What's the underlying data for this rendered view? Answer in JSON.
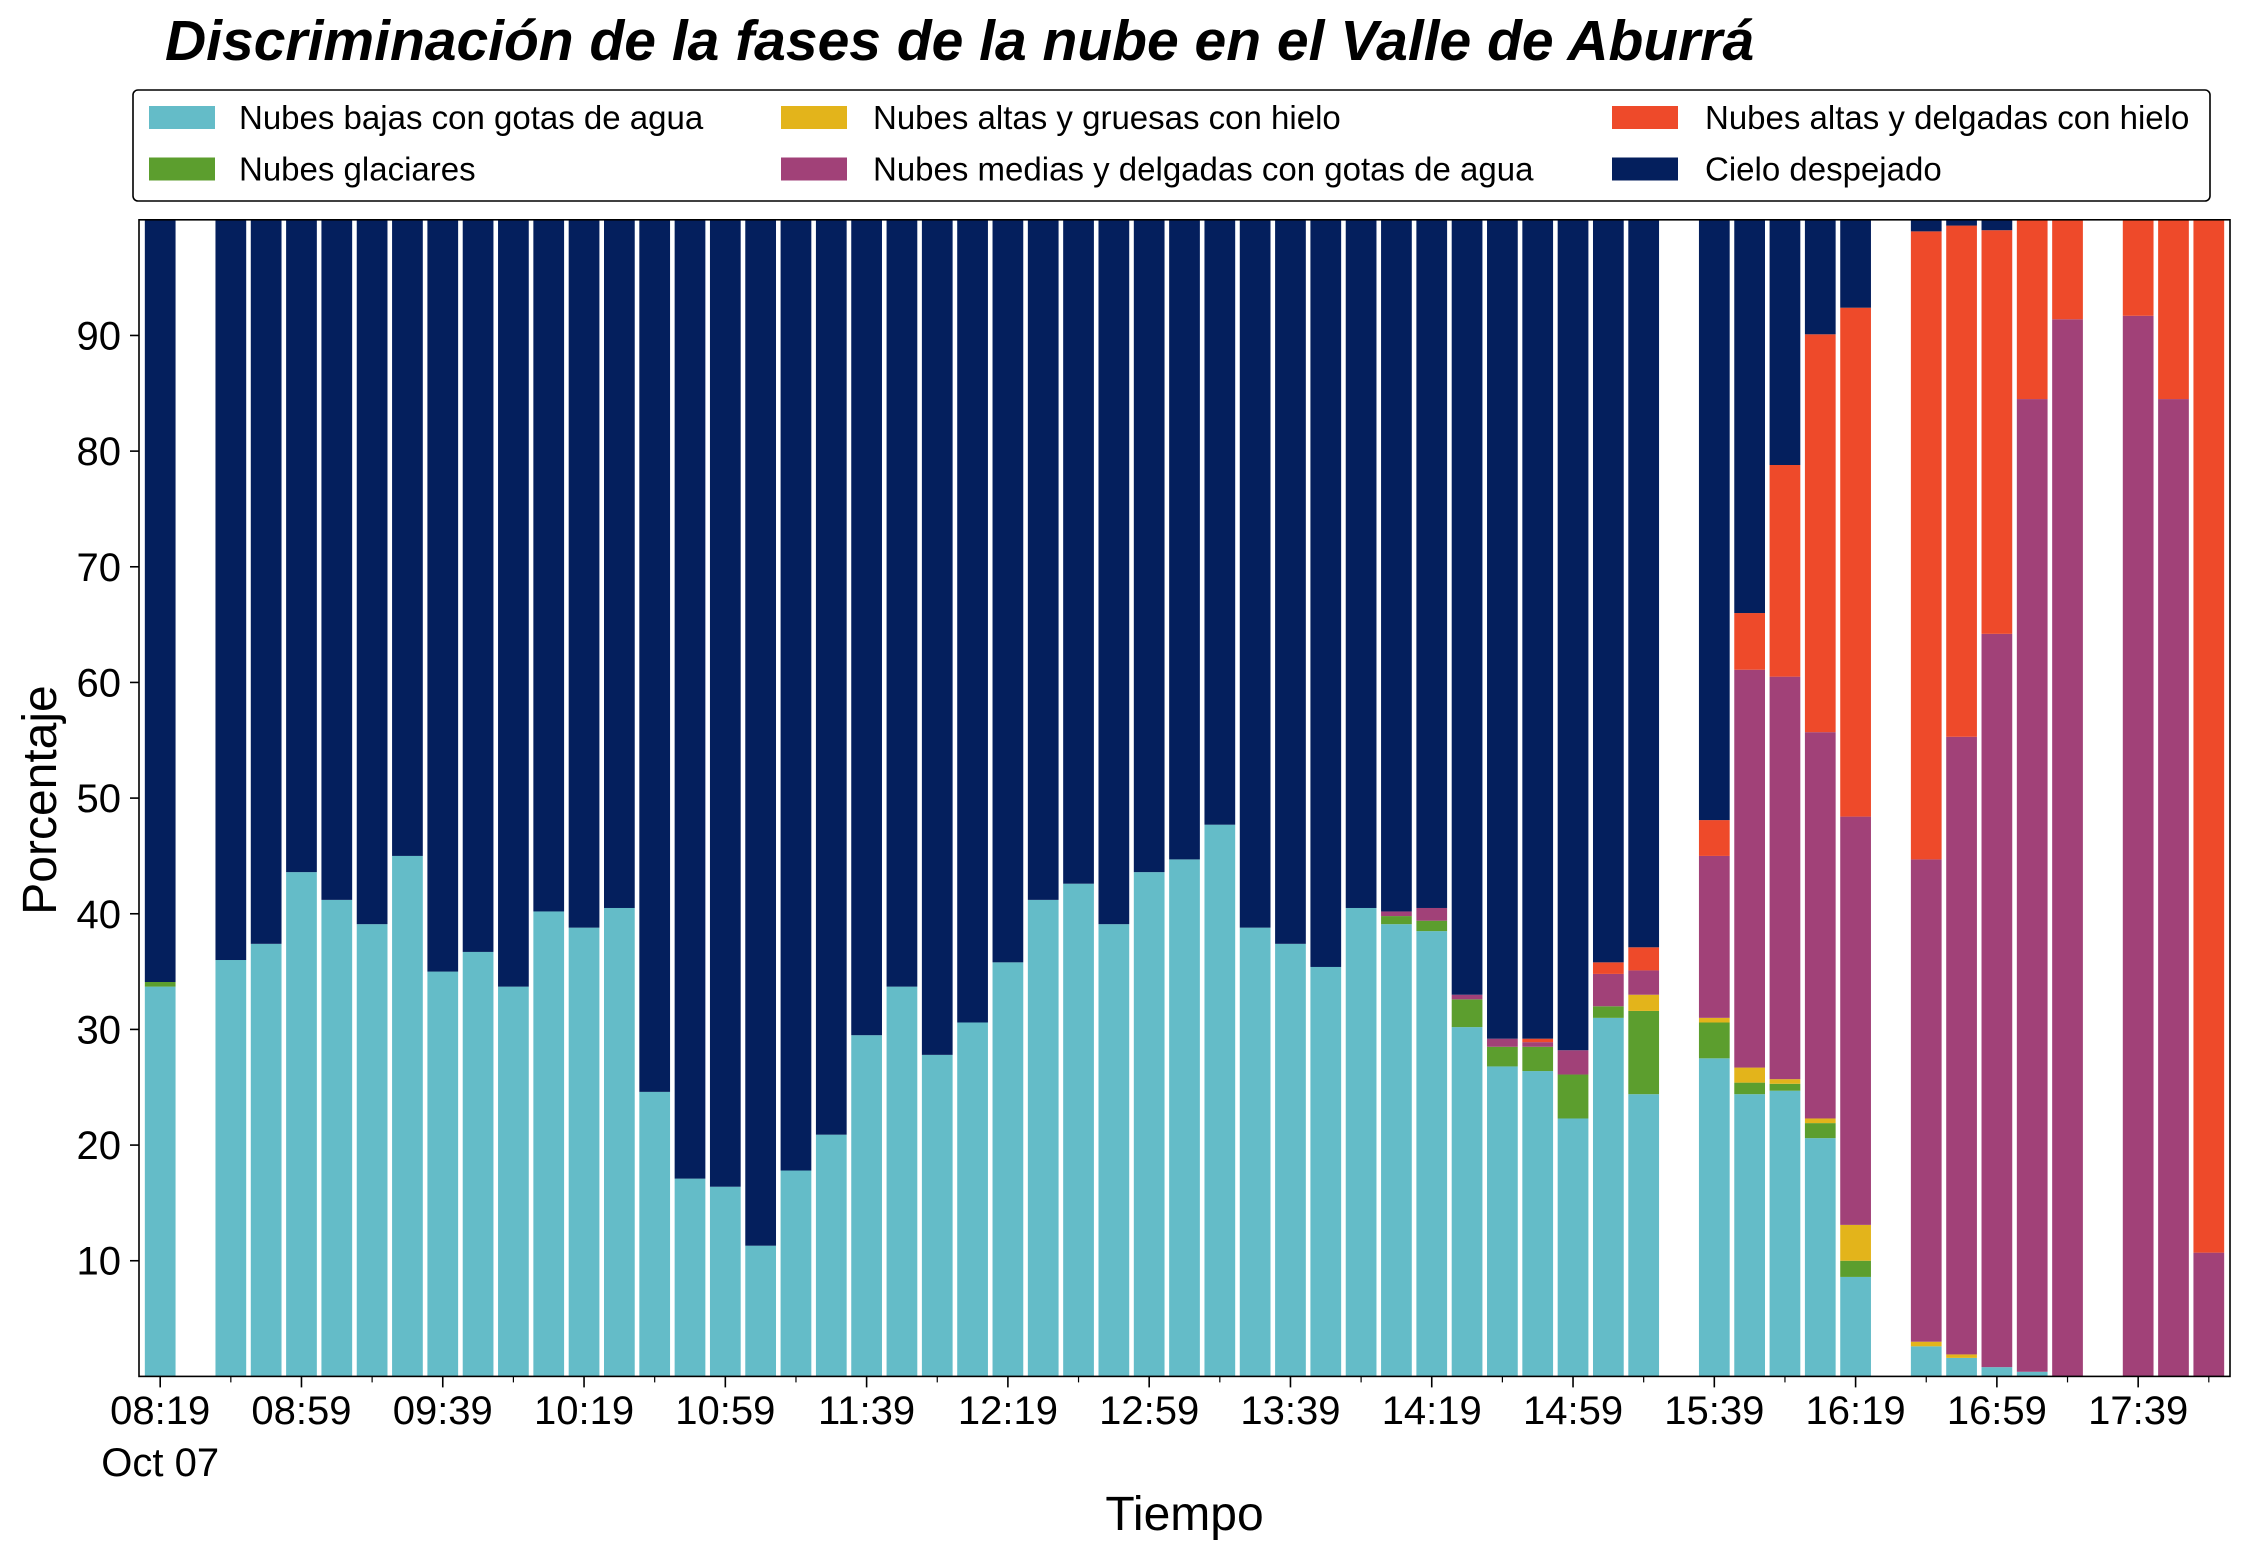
{
  "chart_data": {
    "type": "bar",
    "stacked": true,
    "title": "Discriminación de la fases de la nube en el Valle de Aburrá",
    "xlabel": "Tiempo",
    "ylabel": "Porcentaje",
    "ylim": [
      0,
      100
    ],
    "xlim": [
      "08:13",
      "18:05"
    ],
    "yticks": [
      10,
      20,
      30,
      40,
      50,
      60,
      70,
      80,
      90
    ],
    "xticks": [
      "08:19",
      "08:59",
      "09:39",
      "10:19",
      "10:59",
      "11:39",
      "12:19",
      "12:59",
      "13:39",
      "14:19",
      "14:59",
      "15:39",
      "16:19",
      "16:59",
      "17:39"
    ],
    "date_label": "Oct 07",
    "grid": false,
    "legend": "top",
    "x": [
      "08:19",
      "08:39",
      "08:49",
      "08:59",
      "09:09",
      "09:19",
      "09:29",
      "09:39",
      "09:49",
      "09:59",
      "10:09",
      "10:19",
      "10:29",
      "10:39",
      "10:49",
      "10:59",
      "11:09",
      "11:19",
      "11:29",
      "11:39",
      "11:49",
      "11:59",
      "12:09",
      "12:19",
      "12:29",
      "12:39",
      "12:49",
      "12:59",
      "13:09",
      "13:19",
      "13:29",
      "13:39",
      "13:49",
      "13:59",
      "14:09",
      "14:19",
      "14:29",
      "14:39",
      "14:49",
      "14:59",
      "15:09",
      "15:19",
      "15:39",
      "15:49",
      "15:59",
      "16:09",
      "16:19",
      "16:39",
      "16:49",
      "16:59",
      "17:09",
      "17:19",
      "17:39",
      "17:49",
      "17:59"
    ],
    "series": [
      {
        "name": "Nubes bajas con gotas de agua",
        "color": "#64BCC8",
        "values": [
          33.7,
          36.0,
          37.4,
          43.6,
          41.2,
          39.1,
          45.0,
          35.0,
          36.7,
          33.7,
          40.2,
          38.8,
          40.5,
          24.6,
          17.1,
          16.4,
          11.3,
          17.8,
          20.9,
          29.5,
          33.7,
          27.8,
          30.6,
          35.8,
          41.2,
          42.6,
          39.1,
          43.6,
          44.7,
          47.7,
          38.8,
          37.4,
          35.4,
          40.5,
          39.1,
          38.5,
          30.2,
          26.8,
          26.4,
          22.3,
          31.0,
          24.4,
          27.5,
          24.4,
          24.7,
          20.6,
          8.6,
          2.6,
          1.6,
          0.8,
          0.4,
          0,
          0,
          0,
          0
        ]
      },
      {
        "name": "Nubes glaciares",
        "color": "#5C9E2E",
        "values": [
          0.4,
          0,
          0,
          0,
          0,
          0,
          0,
          0,
          0,
          0,
          0,
          0,
          0,
          0,
          0,
          0,
          0,
          0,
          0,
          0,
          0,
          0,
          0,
          0,
          0,
          0,
          0,
          0,
          0,
          0,
          0,
          0,
          0,
          0,
          0.7,
          0.9,
          2.4,
          1.7,
          2.1,
          3.8,
          1.0,
          7.2,
          3.1,
          1.0,
          0.6,
          1.3,
          1.4,
          0,
          0,
          0,
          0,
          0,
          0,
          0,
          0
        ]
      },
      {
        "name": "Nubes altas y gruesas con hielo",
        "color": "#E3B41B",
        "values": [
          0,
          0,
          0,
          0,
          0,
          0,
          0,
          0,
          0,
          0,
          0,
          0,
          0,
          0,
          0,
          0,
          0,
          0,
          0,
          0,
          0,
          0,
          0,
          0,
          0,
          0,
          0,
          0,
          0,
          0,
          0,
          0,
          0,
          0,
          0,
          0,
          0,
          0,
          0,
          0,
          0,
          1.4,
          0.4,
          1.3,
          0.4,
          0.4,
          3.1,
          0.4,
          0.3,
          0,
          0,
          0,
          0,
          0,
          0
        ]
      },
      {
        "name": "Nubes medias y delgadas con gotas de agua",
        "color": "#A14178",
        "values": [
          0,
          0,
          0,
          0,
          0,
          0,
          0,
          0,
          0,
          0,
          0,
          0,
          0,
          0,
          0,
          0,
          0,
          0,
          0,
          0,
          0,
          0,
          0,
          0,
          0,
          0,
          0,
          0,
          0,
          0,
          0,
          0,
          0,
          0,
          0.4,
          1.1,
          0.4,
          0.7,
          0.4,
          2.1,
          2.8,
          2.1,
          14.0,
          34.4,
          34.8,
          33.4,
          35.3,
          41.7,
          53.4,
          63.4,
          84.1,
          91.4,
          91.7,
          84.5,
          10.7
        ]
      },
      {
        "name": "Nubes altas y delgadas con hielo",
        "color": "#EE4A2A",
        "values": [
          0,
          0,
          0,
          0,
          0,
          0,
          0,
          0,
          0,
          0,
          0,
          0,
          0,
          0,
          0,
          0,
          0,
          0,
          0,
          0,
          0,
          0,
          0,
          0,
          0,
          0,
          0,
          0,
          0,
          0,
          0,
          0,
          0,
          0,
          0,
          0,
          0,
          0,
          0.3,
          0,
          1.0,
          2.0,
          3.1,
          4.9,
          18.3,
          34.4,
          44.0,
          54.3,
          44.2,
          34.9,
          15.5,
          8.6,
          8.3,
          15.5,
          89.3
        ]
      },
      {
        "name": "Cielo despejado",
        "color": "#041F5D",
        "values": [
          65.9,
          64.0,
          62.6,
          56.4,
          58.8,
          60.9,
          55.0,
          65.0,
          63.3,
          66.3,
          59.8,
          61.2,
          59.5,
          75.4,
          82.9,
          83.6,
          88.7,
          82.2,
          79.1,
          70.5,
          66.3,
          72.2,
          69.4,
          64.2,
          58.8,
          57.4,
          60.9,
          56.4,
          55.3,
          52.3,
          61.2,
          62.6,
          64.6,
          59.5,
          59.8,
          59.5,
          67.0,
          70.8,
          70.8,
          71.8,
          64.2,
          62.9,
          51.9,
          34.0,
          21.2,
          9.9,
          7.6,
          1.0,
          0.5,
          0.9,
          0,
          0,
          0,
          0,
          0
        ]
      }
    ]
  }
}
